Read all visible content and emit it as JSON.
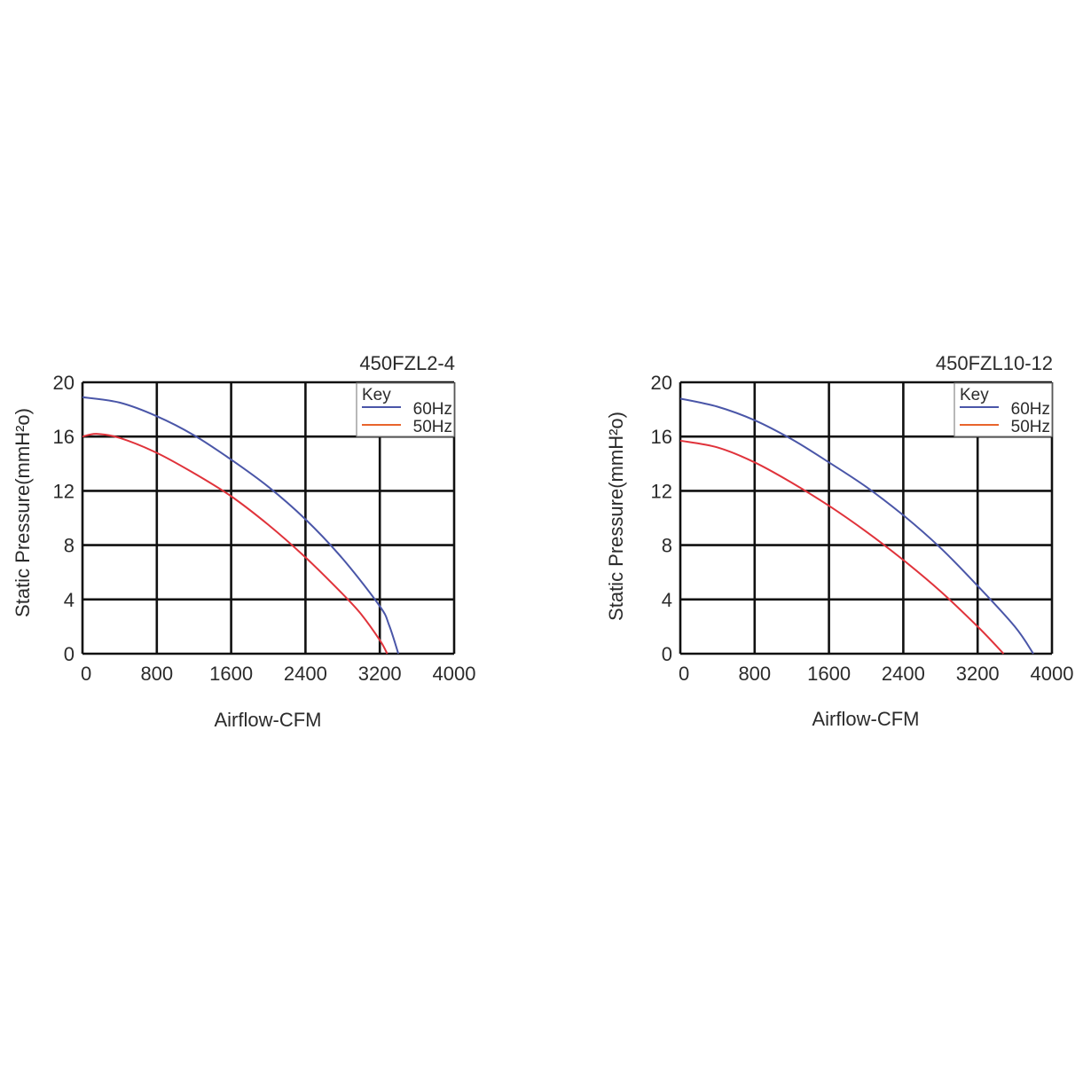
{
  "colors": {
    "blue_series": "#4a56a8",
    "red_series": "#e0333b",
    "legend_orange": "#e8642c",
    "grid": "#111111",
    "text": "#2b2b2b"
  },
  "chart_data": [
    {
      "type": "line",
      "title": "450FZL2-4",
      "xlabel": "Airflow-CFM",
      "ylabel": "Static Pressure(mmH²o)",
      "xlim": [
        0,
        4000
      ],
      "ylim": [
        0,
        20
      ],
      "xticks": [
        "0",
        "800",
        "1600",
        "2400",
        "3200",
        "4000"
      ],
      "yticks": [
        "0",
        "4",
        "8",
        "12",
        "16",
        "20"
      ],
      "grid": true,
      "legend": {
        "title": "Key",
        "placement": "top-right",
        "entries": [
          "60Hz",
          "50Hz"
        ]
      },
      "series": [
        {
          "name": "60Hz",
          "color": "#4a56a8",
          "x": [
            0,
            400,
            800,
            1200,
            1600,
            2000,
            2400,
            2800,
            3200,
            3300,
            3400
          ],
          "y": [
            18.9,
            18.5,
            17.5,
            16.1,
            14.3,
            12.3,
            9.9,
            7.0,
            3.5,
            2.1,
            0
          ]
        },
        {
          "name": "50Hz",
          "color": "#e0333b",
          "x": [
            0,
            150,
            400,
            800,
            1200,
            1600,
            2000,
            2400,
            2800,
            3000,
            3200,
            3280
          ],
          "y": [
            16.0,
            16.2,
            15.9,
            14.8,
            13.3,
            11.6,
            9.5,
            7.1,
            4.4,
            2.9,
            1.0,
            0
          ]
        }
      ]
    },
    {
      "type": "line",
      "title": "450FZL10-12",
      "xlabel": "Airflow-CFM",
      "ylabel": "Static Pressure(mmH²o)",
      "xlim": [
        0,
        4000
      ],
      "ylim": [
        0,
        20
      ],
      "xticks": [
        "0",
        "800",
        "1600",
        "2400",
        "3200",
        "4000"
      ],
      "yticks": [
        "0",
        "4",
        "8",
        "12",
        "16",
        "20"
      ],
      "grid": true,
      "legend": {
        "title": "Key",
        "placement": "top-right",
        "entries": [
          "60Hz",
          "50Hz"
        ]
      },
      "series": [
        {
          "name": "60Hz",
          "color": "#4a56a8",
          "x": [
            0,
            400,
            800,
            1200,
            1600,
            2000,
            2400,
            2800,
            3200,
            3600,
            3800
          ],
          "y": [
            18.8,
            18.2,
            17.2,
            15.8,
            14.1,
            12.3,
            10.2,
            7.8,
            5.0,
            2.0,
            0
          ]
        },
        {
          "name": "50Hz",
          "color": "#e0333b",
          "x": [
            0,
            400,
            800,
            1200,
            1600,
            2000,
            2400,
            2800,
            3200,
            3480
          ],
          "y": [
            15.7,
            15.2,
            14.1,
            12.6,
            10.9,
            9.0,
            6.9,
            4.6,
            2.0,
            0
          ]
        }
      ]
    }
  ]
}
